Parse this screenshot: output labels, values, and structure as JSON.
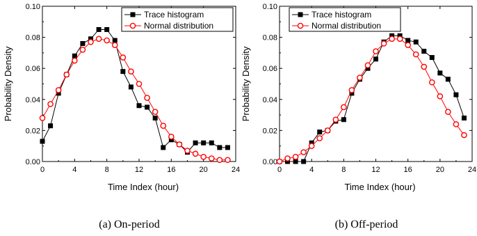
{
  "chart_data": [
    {
      "type": "line",
      "caption": "(a)  On-period",
      "xlabel": "Time Index (hour)",
      "ylabel": "Probability Density",
      "xlim": [
        0,
        24
      ],
      "ylim": [
        0,
        0.1
      ],
      "xticks": [
        "0",
        "4",
        "8",
        "12",
        "16",
        "20",
        "24"
      ],
      "yticks": [
        "0.00",
        "0.02",
        "0.04",
        "0.06",
        "0.08",
        "0.10"
      ],
      "legend_position": "top-right",
      "series": [
        {
          "name": "Trace histogram",
          "color": "#000000",
          "marker": "filled-square",
          "x": [
            0,
            1,
            2,
            3,
            4,
            5,
            6,
            7,
            8,
            9,
            10,
            11,
            12,
            13,
            14,
            15,
            16,
            17,
            18,
            19,
            20,
            21,
            22,
            23
          ],
          "y": [
            0.013,
            0.023,
            0.044,
            0.056,
            0.068,
            0.076,
            0.079,
            0.085,
            0.085,
            0.078,
            0.058,
            0.048,
            0.036,
            0.035,
            0.028,
            0.009,
            0.014,
            0.011,
            0.006,
            0.012,
            0.012,
            0.012,
            0.009,
            0.009
          ]
        },
        {
          "name": "Normal distribution",
          "color": "#ff0000",
          "marker": "open-circle",
          "x": [
            0,
            1,
            2,
            3,
            4,
            5,
            6,
            7,
            8,
            9,
            10,
            11,
            12,
            13,
            14,
            15,
            16,
            17,
            18,
            19,
            20,
            21,
            22,
            23
          ],
          "y": [
            0.028,
            0.037,
            0.046,
            0.056,
            0.065,
            0.072,
            0.077,
            0.079,
            0.078,
            0.075,
            0.067,
            0.058,
            0.05,
            0.041,
            0.032,
            0.023,
            0.016,
            0.011,
            0.007,
            0.005,
            0.003,
            0.002,
            0.001,
            0.001
          ]
        }
      ]
    },
    {
      "type": "line",
      "caption": "(b)  Off-period",
      "xlabel": "Time Index (hour)",
      "ylabel": "Probability Density",
      "xlim": [
        0,
        24
      ],
      "ylim": [
        0,
        0.1
      ],
      "xticks": [
        "0",
        "4",
        "8",
        "12",
        "16",
        "20",
        "24"
      ],
      "yticks": [
        "0.00",
        "0.02",
        "0.04",
        "0.06",
        "0.08",
        "0.10"
      ],
      "legend_position": "top-right",
      "series": [
        {
          "name": "Trace histogram",
          "color": "#000000",
          "marker": "filled-square",
          "x": [
            0,
            1,
            2,
            3,
            4,
            5,
            6,
            7,
            8,
            9,
            10,
            11,
            12,
            13,
            14,
            15,
            16,
            17,
            18,
            19,
            20,
            21,
            22,
            23
          ],
          "y": [
            0.0,
            0.0,
            0.0,
            0.0,
            0.012,
            0.019,
            0.02,
            0.026,
            0.027,
            0.044,
            0.053,
            0.06,
            0.066,
            0.077,
            0.081,
            0.081,
            0.078,
            0.077,
            0.071,
            0.067,
            0.057,
            0.053,
            0.043,
            0.028
          ]
        },
        {
          "name": "Normal distribution",
          "color": "#ff0000",
          "marker": "open-circle",
          "x": [
            0,
            1,
            2,
            3,
            4,
            5,
            6,
            7,
            8,
            9,
            10,
            11,
            12,
            13,
            14,
            15,
            16,
            17,
            18,
            19,
            20,
            21,
            22,
            23
          ],
          "y": [
            0.0,
            0.002,
            0.003,
            0.006,
            0.01,
            0.015,
            0.02,
            0.027,
            0.035,
            0.046,
            0.054,
            0.062,
            0.071,
            0.076,
            0.079,
            0.079,
            0.075,
            0.069,
            0.061,
            0.051,
            0.042,
            0.032,
            0.024,
            0.017
          ]
        }
      ]
    }
  ]
}
